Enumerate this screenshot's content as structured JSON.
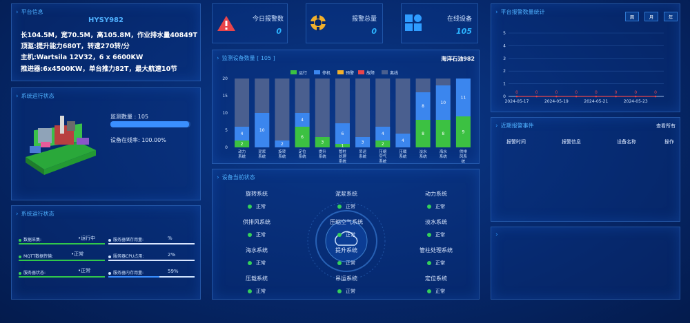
{
  "platform": {
    "title": "平台信息",
    "name": "HYSY982",
    "lines": [
      "长104.5M，宽70.5M，高105.8M，作业排水量40849T",
      "顶驱:提升能力680T，转速270转/分",
      "主机:Wartsila 12V32，6 x 6600KW",
      "推进器:6x4500KW，单台推力82T，最大航速10节"
    ]
  },
  "kpis": [
    {
      "label": "今日报警数",
      "value": "0",
      "icon": "warning-triangle-icon"
    },
    {
      "label": "报警总量",
      "value": "0",
      "icon": "lifebuoy-icon"
    },
    {
      "label": "在线设备",
      "value": "105",
      "icon": "device-grid-icon"
    }
  ],
  "run_status": {
    "title": "系统运行状态",
    "monitor_label": "监测数量 : 105",
    "monitor_fill": 0.98,
    "online_label": "设备在线率: 100.00%"
  },
  "sys_status": {
    "title": "系统运行状态",
    "rows": [
      {
        "label": "数据采集:",
        "value": "运行中",
        "res_label": "服务器储存用量:",
        "res_value": "%",
        "res_fill": 1.0
      },
      {
        "label": "MQTT数据传输:",
        "value": "正常",
        "res_label": "服务器CPU占用:",
        "res_value": "2%",
        "res_fill": 1.0
      },
      {
        "label": "服务器状态:",
        "value": "正常",
        "res_label": "服务器内存用量:",
        "res_value": "59%",
        "res_fill": 0.59
      }
    ]
  },
  "device_chart": {
    "title": "监测设备数量 [ 105 ]",
    "right_title": "海洋石油982",
    "legend": [
      "运行",
      "停机",
      "预警",
      "故障",
      "离线"
    ],
    "colors": {
      "run": "#3cc142",
      "stop": "#3b86ee",
      "warn": "#f2b02b",
      "fault": "#e8454b",
      "offline": "#4a5f8f"
    }
  },
  "chart_data": {
    "type": "bar",
    "stacked": true,
    "categories": [
      "动力系统",
      "泥浆系统",
      "旋转系统",
      "定位系统",
      "提升系统",
      "管柱处理系统",
      "吊运系统",
      "压缩空气系统",
      "压载系统",
      "淡水系统",
      "海水系统",
      "供排风系统"
    ],
    "ylim": [
      0,
      20
    ],
    "yticks": [
      0,
      5,
      10,
      15,
      20
    ],
    "total": 20,
    "series": [
      {
        "name": "运行",
        "values": [
          2,
          0,
          0,
          6,
          3,
          1,
          0,
          2,
          0,
          8,
          8,
          9
        ]
      },
      {
        "name": "停机",
        "values": [
          4,
          10,
          2,
          4,
          0,
          6,
          3,
          4,
          4,
          8,
          10,
          11
        ]
      },
      {
        "name": "预警",
        "values": [
          0,
          0,
          0,
          0,
          0,
          0,
          0,
          0,
          0,
          0,
          0,
          0
        ]
      },
      {
        "name": "故障",
        "values": [
          0,
          0,
          0,
          0,
          0,
          0,
          0,
          0,
          0,
          0,
          0,
          0
        ]
      }
    ]
  },
  "current_status": {
    "title": "设备当前状态",
    "devices": [
      {
        "name": "旋转系统",
        "state": "正常"
      },
      {
        "name": "泥浆系统",
        "state": "正常"
      },
      {
        "name": "动力系统",
        "state": "正常"
      },
      {
        "name": "供排风系统",
        "state": "正常"
      },
      {
        "name": "压缩空气系统",
        "state": "正常"
      },
      {
        "name": "淡水系统",
        "state": "正常"
      },
      {
        "name": "海水系统",
        "state": "正常"
      },
      {
        "name": "提升系统",
        "state": "正常"
      },
      {
        "name": "管柱处理系统",
        "state": "正常"
      },
      {
        "name": "压载系统",
        "state": "正常"
      },
      {
        "name": "吊运系统",
        "state": "正常"
      },
      {
        "name": "定位系统",
        "state": "正常"
      }
    ]
  },
  "alarm_stats": {
    "title": "平台报警数量统计",
    "ranges": [
      "周",
      "月",
      "年"
    ],
    "chart": {
      "type": "line",
      "x": [
        "2024-05-17",
        "2024-05-18",
        "2024-05-19",
        "2024-05-20",
        "2024-05-21",
        "2024-05-22",
        "2024-05-23",
        "2024-05-24"
      ],
      "x_labels": [
        "2024-05-17",
        "2024-05-19",
        "2024-05-21",
        "2024-05-23"
      ],
      "values": [
        0,
        0,
        0,
        0,
        0,
        0,
        0,
        0
      ],
      "ylim": [
        0,
        5
      ],
      "yticks": [
        0,
        1,
        2,
        3,
        4,
        5
      ]
    }
  },
  "recent_alarms": {
    "title": "近期报警事件",
    "view_all": "查看所有",
    "columns": [
      "报警时间",
      "报警信息",
      "设备名称",
      "操作"
    ]
  }
}
